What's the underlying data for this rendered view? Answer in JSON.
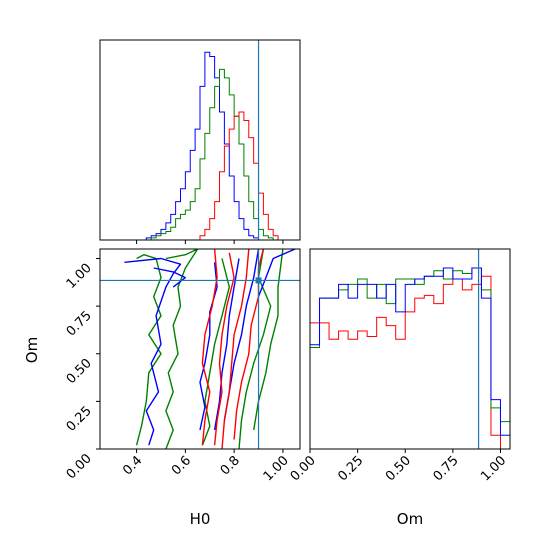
{
  "chart_data": {
    "type": "corner",
    "parameters": [
      "H0",
      "Om"
    ],
    "truths": {
      "H0": 0.9,
      "Om": 0.885
    },
    "truth_color": "#1f77b4",
    "series_colors": {
      "red": "#ff0000",
      "green": "#008000",
      "blue": "#0000ff"
    },
    "panels": [
      {
        "id": "H0-marginal",
        "type": "histogram",
        "xlim": [
          0.25,
          1.07
        ],
        "bins": [
          0.3,
          0.32,
          0.34,
          0.36,
          0.38,
          0.4,
          0.42,
          0.44,
          0.46,
          0.48,
          0.5,
          0.52,
          0.54,
          0.56,
          0.58,
          0.6,
          0.62,
          0.64,
          0.66,
          0.68,
          0.7,
          0.72,
          0.74,
          0.76,
          0.78,
          0.8,
          0.82,
          0.84,
          0.86,
          0.88,
          0.9,
          0.92,
          0.94,
          0.96,
          0.98,
          1.0
        ],
        "series": [
          {
            "color": "blue",
            "values": [
              0,
              0,
              0,
              0,
              0,
              0,
              0,
              1,
              2,
              3,
              5,
              8,
              12,
              18,
              24,
              32,
              42,
              52,
              72,
              88,
              86,
              76,
              60,
              45,
              30,
              18,
              10,
              5,
              2,
              1,
              0,
              0,
              0,
              0,
              0
            ]
          },
          {
            "color": "green",
            "values": [
              0,
              0,
              0,
              0,
              0,
              0,
              0,
              0,
              1,
              2,
              3,
              4,
              6,
              10,
              12,
              14,
              18,
              24,
              38,
              50,
              62,
              72,
              80,
              76,
              68,
              58,
              45,
              30,
              18,
              10,
              5,
              2,
              1,
              0,
              0
            ]
          },
          {
            "color": "red",
            "values": [
              0,
              0,
              0,
              0,
              0,
              0,
              0,
              0,
              0,
              0,
              0,
              0,
              0,
              0,
              0,
              0,
              0,
              0,
              2,
              5,
              10,
              18,
              32,
              44,
              52,
              58,
              60,
              56,
              48,
              36,
              22,
              12,
              5,
              2,
              0
            ]
          }
        ],
        "xticks": [
          0.4,
          0.6,
          0.8,
          1.0
        ]
      },
      {
        "id": "Om-marginal",
        "type": "histogram",
        "xlim": [
          0.0,
          1.05
        ],
        "bins": [
          0.0,
          0.05,
          0.1,
          0.15,
          0.2,
          0.25,
          0.3,
          0.35,
          0.4,
          0.45,
          0.5,
          0.55,
          0.6,
          0.65,
          0.7,
          0.75,
          0.8,
          0.85,
          0.9,
          0.95,
          1.0,
          1.05
        ],
        "series": [
          {
            "color": "red",
            "values": [
              0.46,
              0.46,
              0.4,
              0.43,
              0.4,
              0.43,
              0.41,
              0.48,
              0.45,
              0.4,
              0.5,
              0.55,
              0.56,
              0.53,
              0.6,
              0.62,
              0.58,
              0.6,
              0.63,
              0.05,
              0.0
            ]
          },
          {
            "color": "green",
            "values": [
              0.37,
              0.55,
              0.55,
              0.58,
              0.6,
              0.62,
              0.55,
              0.6,
              0.53,
              0.62,
              0.62,
              0.6,
              0.63,
              0.65,
              0.62,
              0.65,
              0.64,
              0.66,
              0.58,
              0.15,
              0.1
            ]
          },
          {
            "color": "blue",
            "values": [
              0.38,
              0.55,
              0.55,
              0.6,
              0.55,
              0.6,
              0.6,
              0.55,
              0.6,
              0.5,
              0.6,
              0.62,
              0.63,
              0.63,
              0.66,
              0.62,
              0.62,
              0.66,
              0.55,
              0.18,
              0.05
            ]
          }
        ],
        "xticks": [
          0.0,
          0.25,
          0.5,
          0.75,
          1.0
        ],
        "xlabel": "Om"
      },
      {
        "id": "H0-Om-joint",
        "type": "contour",
        "xlim": [
          0.25,
          1.07
        ],
        "ylim": [
          0.0,
          1.05
        ],
        "xlabel": "H0",
        "ylabel": "Om",
        "xticks": [
          0.4,
          0.6,
          0.8,
          1.0
        ],
        "yticks": [
          0.0,
          0.25,
          0.5,
          0.75,
          1.0
        ],
        "contours": [
          {
            "color": "green",
            "points": [
              [
                0.4,
                1.0
              ],
              [
                0.43,
                1.02
              ],
              [
                0.48,
                1.0
              ],
              [
                0.5,
                0.9
              ],
              [
                0.47,
                0.8
              ],
              [
                0.5,
                0.7
              ],
              [
                0.45,
                0.6
              ],
              [
                0.5,
                0.5
              ],
              [
                0.45,
                0.4
              ],
              [
                0.44,
                0.25
              ],
              [
                0.42,
                0.12
              ],
              [
                0.4,
                0.02
              ]
            ]
          },
          {
            "color": "green",
            "points": [
              [
                0.52,
                1.0
              ],
              [
                0.6,
                1.02
              ],
              [
                0.65,
                1.05
              ],
              [
                0.6,
                0.95
              ],
              [
                0.57,
                0.85
              ],
              [
                0.58,
                0.75
              ],
              [
                0.55,
                0.65
              ],
              [
                0.57,
                0.5
              ],
              [
                0.53,
                0.4
              ],
              [
                0.55,
                0.3
              ],
              [
                0.52,
                0.2
              ],
              [
                0.55,
                0.1
              ],
              [
                0.52,
                0.0
              ]
            ]
          },
          {
            "color": "green",
            "points": [
              [
                0.75,
                1.0
              ],
              [
                0.78,
                0.85
              ],
              [
                0.75,
                0.7
              ],
              [
                0.72,
                0.55
              ],
              [
                0.7,
                0.4
              ],
              [
                0.68,
                0.25
              ],
              [
                0.7,
                0.12
              ],
              [
                0.67,
                0.02
              ]
            ]
          },
          {
            "color": "green",
            "points": [
              [
                0.92,
                1.05
              ],
              [
                0.9,
                0.9
              ],
              [
                0.95,
                0.75
              ],
              [
                0.92,
                0.6
              ],
              [
                0.88,
                0.45
              ],
              [
                0.85,
                0.3
              ],
              [
                0.83,
                0.15
              ],
              [
                0.82,
                0.0
              ]
            ]
          },
          {
            "color": "green",
            "points": [
              [
                1.0,
                1.05
              ],
              [
                0.98,
                0.85
              ],
              [
                0.98,
                0.7
              ],
              [
                0.95,
                0.55
              ],
              [
                0.93,
                0.4
              ],
              [
                0.9,
                0.25
              ],
              [
                0.88,
                0.1
              ]
            ]
          },
          {
            "color": "blue",
            "points": [
              [
                0.35,
                0.98
              ],
              [
                0.5,
                1.0
              ],
              [
                0.58,
                0.97
              ],
              [
                0.55,
                0.92
              ],
              [
                0.52,
                0.85
              ],
              [
                0.48,
                0.7
              ],
              [
                0.5,
                0.55
              ],
              [
                0.46,
                0.45
              ],
              [
                0.49,
                0.3
              ],
              [
                0.44,
                0.2
              ],
              [
                0.47,
                0.1
              ],
              [
                0.45,
                0.02
              ]
            ]
          },
          {
            "color": "blue",
            "points": [
              [
                0.47,
                0.95
              ],
              [
                0.55,
                0.93
              ],
              [
                0.6,
                0.9
              ],
              [
                0.55,
                0.85
              ]
            ]
          },
          {
            "color": "blue",
            "points": [
              [
                0.72,
                0.98
              ],
              [
                0.73,
                0.85
              ],
              [
                0.7,
                0.72
              ],
              [
                0.7,
                0.6
              ],
              [
                0.68,
                0.45
              ],
              [
                0.66,
                0.35
              ],
              [
                0.68,
                0.22
              ],
              [
                0.66,
                0.1
              ]
            ]
          },
          {
            "color": "blue",
            "points": [
              [
                0.82,
                1.0
              ],
              [
                0.8,
                0.85
              ],
              [
                0.78,
                0.7
              ],
              [
                0.77,
                0.55
              ],
              [
                0.75,
                0.4
              ],
              [
                0.74,
                0.25
              ],
              [
                0.72,
                0.1
              ]
            ]
          },
          {
            "color": "blue",
            "points": [
              [
                0.9,
                1.05
              ],
              [
                0.88,
                0.9
              ],
              [
                0.85,
                0.75
              ],
              [
                0.83,
                0.6
              ],
              [
                0.8,
                0.45
              ],
              [
                0.78,
                0.3
              ],
              [
                0.76,
                0.15
              ]
            ]
          },
          {
            "color": "blue",
            "points": [
              [
                1.05,
                1.05
              ],
              [
                0.96,
                1.0
              ],
              [
                0.93,
                0.9
              ],
              [
                0.9,
                0.8
              ]
            ]
          },
          {
            "color": "red",
            "points": [
              [
                0.72,
                1.05
              ],
              [
                0.73,
                0.9
              ],
              [
                0.71,
                0.75
              ],
              [
                0.68,
                0.6
              ],
              [
                0.67,
                0.45
              ],
              [
                0.7,
                0.3
              ],
              [
                0.68,
                0.15
              ],
              [
                0.67,
                0.02
              ]
            ]
          },
          {
            "color": "red",
            "points": [
              [
                0.78,
                1.03
              ],
              [
                0.8,
                0.9
              ],
              [
                0.77,
                0.75
              ],
              [
                0.75,
                0.6
              ],
              [
                0.74,
                0.45
              ],
              [
                0.75,
                0.3
              ],
              [
                0.73,
                0.15
              ],
              [
                0.72,
                0.02
              ]
            ]
          },
          {
            "color": "red",
            "points": [
              [
                0.86,
                1.05
              ],
              [
                0.85,
                0.9
              ],
              [
                0.83,
                0.75
              ],
              [
                0.8,
                0.6
              ],
              [
                0.79,
                0.45
              ],
              [
                0.78,
                0.3
              ],
              [
                0.76,
                0.15
              ],
              [
                0.75,
                0.0
              ]
            ]
          },
          {
            "color": "red",
            "points": [
              [
                0.92,
                1.05
              ],
              [
                0.9,
                0.95
              ],
              [
                0.9,
                0.8
              ],
              [
                0.87,
                0.65
              ],
              [
                0.86,
                0.5
              ],
              [
                0.83,
                0.35
              ],
              [
                0.81,
                0.2
              ],
              [
                0.8,
                0.05
              ]
            ]
          }
        ]
      }
    ]
  },
  "labels": {
    "h0_axis": "H0",
    "om_axis_bottom": "Om",
    "om_axis_left": "Om"
  }
}
